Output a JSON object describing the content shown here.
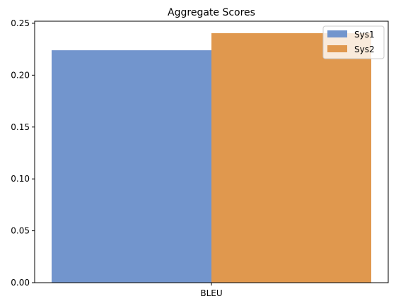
{
  "chart_data": {
    "type": "bar",
    "title": "Aggregate Scores",
    "xlabel": "",
    "ylabel": "",
    "categories": [
      "BLEU"
    ],
    "series": [
      {
        "name": "Sys1",
        "values": [
          0.224
        ],
        "color": "#7295cd"
      },
      {
        "name": "Sys2",
        "values": [
          0.2405
        ],
        "color": "#e0984e"
      }
    ],
    "ylim": [
      0,
      0.252
    ],
    "yticks": [
      0.0,
      0.05,
      0.1,
      0.15,
      0.2,
      0.25
    ],
    "ytick_labels": [
      "0.00",
      "0.05",
      "0.10",
      "0.15",
      "0.20",
      "0.25"
    ],
    "grid": false,
    "legend_position": "top-right"
  }
}
